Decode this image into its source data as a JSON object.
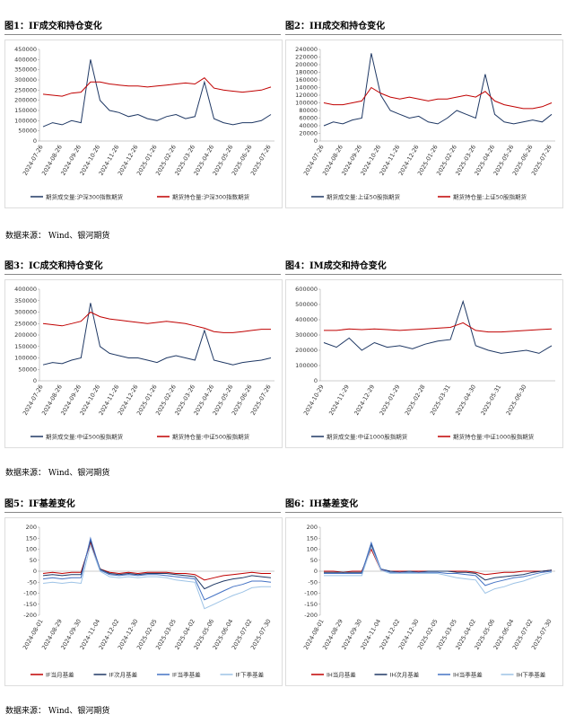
{
  "chart_data": [
    {
      "type": "line",
      "title": "图1：IF成交和持仓变化",
      "categories": [
        "2024-07-26",
        null,
        "2024-08-26",
        null,
        "2024-09-26",
        null,
        "2024-10-26",
        null,
        "2024-11-26",
        null,
        "2024-12-26",
        null,
        "2025-01-26",
        null,
        "2025-02-26",
        null,
        "2025-03-26",
        null,
        "2025-04-26",
        null,
        "2025-05-26",
        null,
        "2025-06-26",
        null,
        "2025-07-26"
      ],
      "ylim": [
        0,
        450000
      ],
      "yticks": [
        0,
        50000,
        100000,
        150000,
        200000,
        250000,
        300000,
        350000,
        400000,
        450000
      ],
      "series": [
        {
          "name": "期货成交量:沪深300指数期货",
          "color": "#1f3864",
          "values": [
            70000,
            90000,
            80000,
            100000,
            90000,
            400000,
            200000,
            150000,
            140000,
            120000,
            130000,
            110000,
            100000,
            120000,
            130000,
            110000,
            120000,
            290000,
            110000,
            90000,
            80000,
            90000,
            90000,
            100000,
            130000
          ]
        },
        {
          "name": "期货持仓量:沪深300指数期货",
          "color": "#c00000",
          "values": [
            230000,
            225000,
            220000,
            235000,
            240000,
            290000,
            290000,
            280000,
            275000,
            270000,
            270000,
            265000,
            270000,
            275000,
            280000,
            285000,
            280000,
            310000,
            260000,
            250000,
            245000,
            240000,
            245000,
            250000,
            265000
          ]
        }
      ]
    },
    {
      "type": "line",
      "title": "图2：IH成交和持仓变化",
      "categories": [
        "2024-07-26",
        null,
        "2024-08-26",
        null,
        "2024-09-26",
        null,
        "2024-10-26",
        null,
        "2024-11-26",
        null,
        "2024-12-26",
        null,
        "2025-01-26",
        null,
        "2025-02-26",
        null,
        "2025-03-26",
        null,
        "2025-04-26",
        null,
        "2025-05-26",
        null,
        "2025-06-26",
        null,
        "2025-07-26"
      ],
      "ylim": [
        0,
        240000
      ],
      "yticks": [
        0,
        20000,
        40000,
        60000,
        80000,
        100000,
        120000,
        140000,
        160000,
        180000,
        200000,
        220000,
        240000
      ],
      "series": [
        {
          "name": "期货成交量:上证50股指期货",
          "color": "#1f3864",
          "values": [
            40000,
            50000,
            45000,
            55000,
            60000,
            230000,
            120000,
            80000,
            70000,
            60000,
            65000,
            50000,
            45000,
            60000,
            80000,
            70000,
            60000,
            175000,
            70000,
            50000,
            45000,
            50000,
            55000,
            50000,
            70000
          ]
        },
        {
          "name": "期货持仓量:上证50股指期货",
          "color": "#c00000",
          "values": [
            100000,
            95000,
            95000,
            100000,
            105000,
            140000,
            125000,
            115000,
            110000,
            115000,
            110000,
            105000,
            110000,
            110000,
            115000,
            120000,
            115000,
            130000,
            105000,
            95000,
            90000,
            85000,
            85000,
            90000,
            100000
          ]
        }
      ]
    },
    {
      "type": "line",
      "title": "图3：IC成交和持仓变化",
      "categories": [
        "2024-07-26",
        null,
        "2024-08-26",
        null,
        "2024-09-26",
        null,
        "2024-10-26",
        null,
        "2024-11-26",
        null,
        "2024-12-26",
        null,
        "2025-01-26",
        null,
        "2025-02-26",
        null,
        "2025-03-26",
        null,
        "2025-04-26",
        null,
        "2025-05-26",
        null,
        "2025-06-26",
        null,
        "2025-07-26"
      ],
      "ylim": [
        0,
        400000
      ],
      "yticks": [
        0,
        50000,
        100000,
        150000,
        200000,
        250000,
        300000,
        350000,
        400000
      ],
      "series": [
        {
          "name": "期货成交量:中证500股指期货",
          "color": "#1f3864",
          "values": [
            70000,
            80000,
            75000,
            90000,
            100000,
            340000,
            150000,
            120000,
            110000,
            100000,
            100000,
            90000,
            80000,
            100000,
            110000,
            100000,
            90000,
            220000,
            90000,
            80000,
            70000,
            80000,
            85000,
            90000,
            100000
          ]
        },
        {
          "name": "期货持仓量:中证500股指期货",
          "color": "#c00000",
          "values": [
            250000,
            245000,
            240000,
            250000,
            260000,
            300000,
            280000,
            270000,
            265000,
            260000,
            255000,
            250000,
            255000,
            260000,
            255000,
            250000,
            240000,
            230000,
            215000,
            210000,
            210000,
            215000,
            220000,
            225000,
            225000
          ]
        }
      ]
    },
    {
      "type": "line",
      "title": "图4：IM成交和持仓变化",
      "categories": [
        "2024-10-29",
        null,
        "2024-11-29",
        null,
        "2024-12-29",
        null,
        "2025-01-29",
        null,
        "2025-02-28",
        null,
        "2025-03-31",
        null,
        "2025-04-30",
        null,
        "2025-05-31",
        null,
        "2025-06-30",
        null,
        null
      ],
      "ylim": [
        0,
        600000
      ],
      "yticks": [
        0,
        100000,
        200000,
        300000,
        400000,
        500000,
        600000
      ],
      "series": [
        {
          "name": "期货成交量:中证1000股指期货",
          "color": "#1f3864",
          "values": [
            250000,
            220000,
            280000,
            200000,
            250000,
            220000,
            230000,
            210000,
            240000,
            260000,
            270000,
            520000,
            230000,
            200000,
            180000,
            190000,
            200000,
            180000,
            230000
          ]
        },
        {
          "name": "期货持仓量:中证1000股指期货",
          "color": "#c00000",
          "values": [
            330000,
            330000,
            340000,
            335000,
            340000,
            335000,
            330000,
            335000,
            340000,
            345000,
            350000,
            380000,
            330000,
            320000,
            320000,
            325000,
            330000,
            335000,
            340000
          ]
        }
      ]
    },
    {
      "type": "line",
      "title": "图5：IF基差变化",
      "categories": [
        "2024-08-01",
        null,
        "2024-08-29",
        null,
        "2024-09-30",
        null,
        "2024-11-04",
        null,
        "2024-12-02",
        null,
        "2024-12-30",
        null,
        "2025-02-05",
        null,
        "2025-03-05",
        null,
        "2025-04-02",
        null,
        "2025-05-06",
        null,
        "2025-06-04",
        null,
        "2025-07-02",
        null,
        "2025-07-30"
      ],
      "ylim": [
        -200,
        200
      ],
      "yticks": [
        -200,
        -150,
        -100,
        -50,
        0,
        50,
        100,
        150,
        200
      ],
      "series": [
        {
          "name": "IF当月基差",
          "color": "#c00000",
          "values": [
            -10,
            -5,
            -10,
            -5,
            -5,
            130,
            10,
            -5,
            -10,
            -5,
            -10,
            -5,
            -5,
            -5,
            -10,
            -10,
            -15,
            -40,
            -30,
            -20,
            -15,
            -10,
            -5,
            -10,
            -10
          ]
        },
        {
          "name": "IF次月基差",
          "color": "#1f3864",
          "values": [
            -20,
            -15,
            -20,
            -15,
            -15,
            140,
            10,
            -10,
            -15,
            -10,
            -15,
            -10,
            -10,
            -10,
            -15,
            -20,
            -25,
            -80,
            -60,
            -45,
            -35,
            -30,
            -20,
            -25,
            -30
          ]
        },
        {
          "name": "IF当季基差",
          "color": "#4472c4",
          "values": [
            -35,
            -30,
            -35,
            -30,
            -30,
            150,
            5,
            -15,
            -20,
            -15,
            -20,
            -15,
            -15,
            -20,
            -25,
            -30,
            -35,
            -130,
            -110,
            -90,
            -70,
            -60,
            -45,
            -45,
            -50
          ]
        },
        {
          "name": "IF下季基差",
          "color": "#9dc3e6",
          "values": [
            -55,
            -50,
            -55,
            -50,
            -55,
            120,
            0,
            -25,
            -30,
            -25,
            -30,
            -25,
            -25,
            -30,
            -40,
            -45,
            -50,
            -170,
            -150,
            -130,
            -110,
            -95,
            -75,
            -70,
            -70
          ]
        }
      ]
    },
    {
      "type": "line",
      "title": "图6：IH基差变化",
      "categories": [
        "2024-08-01",
        null,
        "2024-08-29",
        null,
        "2024-09-30",
        null,
        "2024-11-04",
        null,
        "2024-12-02",
        null,
        "2024-12-30",
        null,
        "2025-02-05",
        null,
        "2025-03-05",
        null,
        "2025-04-02",
        null,
        "2025-05-06",
        null,
        "2025-06-04",
        null,
        "2025-07-02",
        null,
        "2025-07-30"
      ],
      "ylim": [
        -200,
        200
      ],
      "yticks": [
        -200,
        -150,
        -100,
        -50,
        0,
        50,
        100,
        150,
        200
      ],
      "series": [
        {
          "name": "IH当月基差",
          "color": "#c00000",
          "values": [
            0,
            0,
            -5,
            0,
            0,
            100,
            5,
            0,
            0,
            0,
            0,
            0,
            0,
            0,
            0,
            0,
            -5,
            -15,
            -10,
            -5,
            -5,
            0,
            0,
            0,
            5
          ]
        },
        {
          "name": "IH次月基差",
          "color": "#1f3864",
          "values": [
            -5,
            -5,
            -5,
            -5,
            -5,
            120,
            10,
            0,
            -5,
            0,
            -5,
            0,
            0,
            0,
            -5,
            -5,
            -10,
            -40,
            -30,
            -25,
            -20,
            -15,
            -5,
            0,
            5
          ]
        },
        {
          "name": "IH当季基差",
          "color": "#4472c4",
          "values": [
            -10,
            -10,
            -10,
            -10,
            -10,
            130,
            10,
            -5,
            -5,
            -5,
            -5,
            -5,
            -5,
            -10,
            -10,
            -15,
            -20,
            -65,
            -50,
            -40,
            -30,
            -25,
            -15,
            -5,
            0
          ]
        },
        {
          "name": "IH下季基差",
          "color": "#9dc3e6",
          "values": [
            -20,
            -20,
            -20,
            -20,
            -20,
            110,
            5,
            -10,
            -10,
            -10,
            -10,
            -10,
            -10,
            -20,
            -30,
            -35,
            -40,
            -100,
            -80,
            -70,
            -55,
            -45,
            -30,
            -15,
            -5
          ]
        }
      ]
    }
  ],
  "notes": [
    "数据来源： Wind、银河期货",
    "数据来源： Wind、银河期货",
    "数据来源： Wind、银河期货"
  ]
}
